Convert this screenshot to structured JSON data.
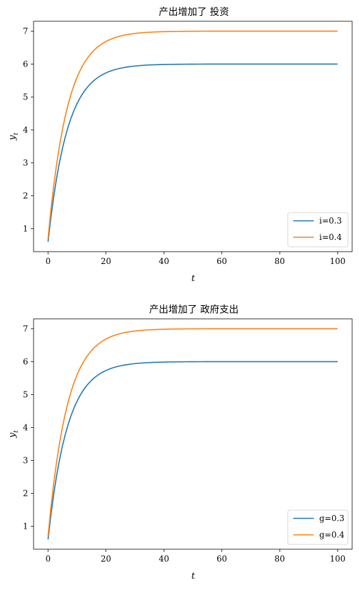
{
  "chart_data": [
    {
      "type": "line",
      "title": "产出增加了 投资",
      "xlabel": "t",
      "ylabel": "y_t",
      "xlim": [
        -5,
        105
      ],
      "ylim": [
        0.3,
        7.3
      ],
      "xticks": [
        0,
        20,
        40,
        60,
        80,
        100
      ],
      "yticks": [
        1,
        2,
        3,
        4,
        5,
        6,
        7
      ],
      "grid": false,
      "legend": "lower-right",
      "series": [
        {
          "name": "i=0.3",
          "color": "#1f77b4",
          "y0": 0.6,
          "ss": 6.0,
          "rate": 0.15,
          "x_range": [
            0,
            100
          ]
        },
        {
          "name": "i=0.4",
          "color": "#ff7f0e",
          "y0": 0.7,
          "ss": 7.0,
          "rate": 0.15,
          "x_range": [
            0,
            100
          ]
        }
      ]
    },
    {
      "type": "line",
      "title": "产出增加了 政府支出",
      "xlabel": "t",
      "ylabel": "y_t",
      "xlim": [
        -5,
        105
      ],
      "ylim": [
        0.3,
        7.3
      ],
      "xticks": [
        0,
        20,
        40,
        60,
        80,
        100
      ],
      "yticks": [
        1,
        2,
        3,
        4,
        5,
        6,
        7
      ],
      "grid": false,
      "legend": "lower-right",
      "series": [
        {
          "name": "g=0.3",
          "color": "#1f77b4",
          "y0": 0.6,
          "ss": 6.0,
          "rate": 0.15,
          "x_range": [
            0,
            100
          ]
        },
        {
          "name": "g=0.4",
          "color": "#ff7f0e",
          "y0": 0.7,
          "ss": 7.0,
          "rate": 0.15,
          "x_range": [
            0,
            100
          ]
        }
      ]
    }
  ]
}
